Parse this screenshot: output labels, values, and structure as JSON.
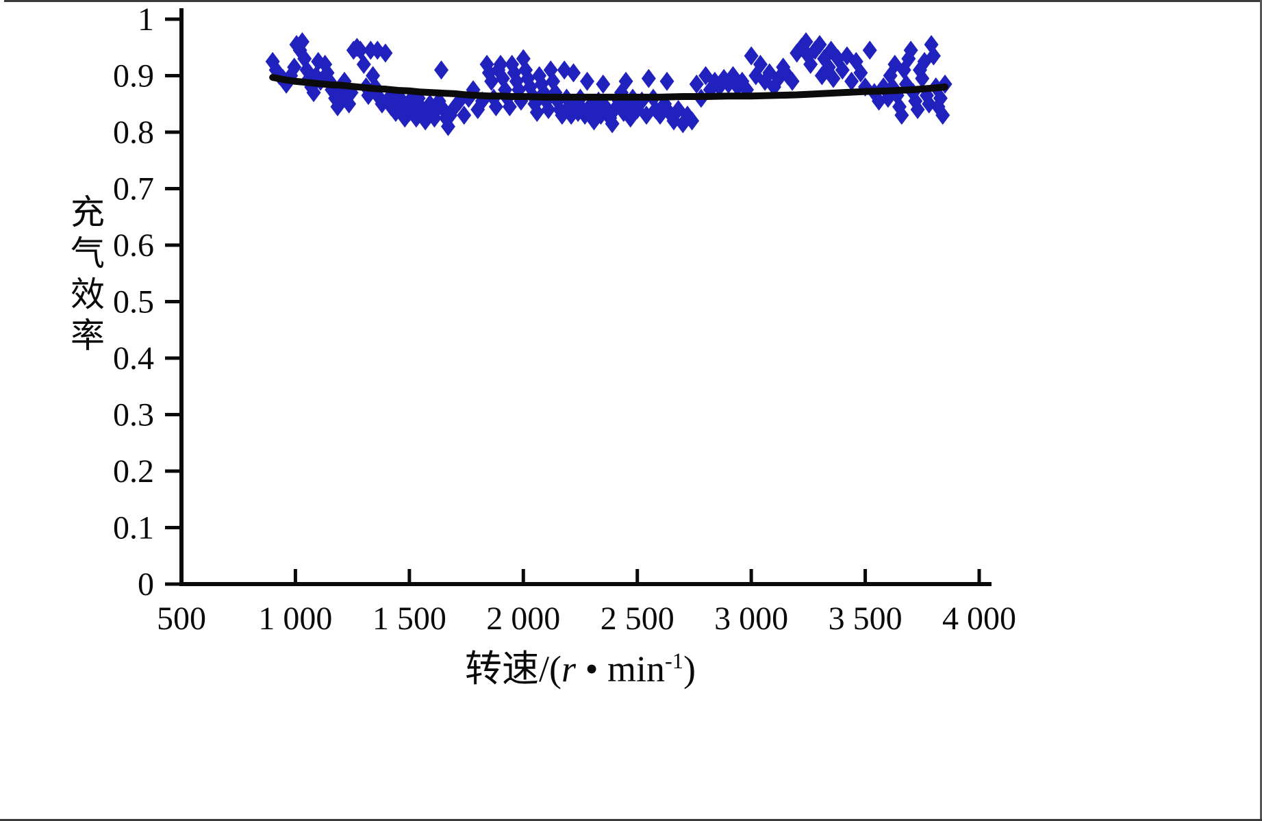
{
  "chart_data": {
    "type": "scatter",
    "title": "",
    "xlabel": "转速/(r·min⁻¹)",
    "ylabel": "充气效率",
    "xlabel_parts": {
      "pre": "转速/(",
      "var": "r",
      "dot": " • ",
      "unit": "min",
      "sup": "-1",
      "post": ")"
    },
    "xlim": [
      500,
      4000
    ],
    "ylim": [
      0,
      1
    ],
    "x_ticks": [
      500,
      1000,
      1500,
      2000,
      2500,
      3000,
      3500,
      4000
    ],
    "x_tick_labels": [
      "500",
      "1 000",
      "1 500",
      "2 000",
      "2 500",
      "3 000",
      "3 500",
      "4 000"
    ],
    "y_ticks": [
      0,
      0.1,
      0.2,
      0.3,
      0.4,
      0.5,
      0.6,
      0.7,
      0.8,
      0.9,
      1
    ],
    "y_tick_labels": [
      "0",
      "0.1",
      "0.2",
      "0.3",
      "0.4",
      "0.5",
      "0.6",
      "0.7",
      "0.8",
      "0.9",
      "1"
    ],
    "grid": false,
    "legend": "none",
    "colors": {
      "scatter": "#2121bd",
      "line": "#0b0b0b"
    },
    "series": [
      {
        "name": "measured-points",
        "type": "scatter",
        "marker": "diamond",
        "color": "#2121bd",
        "points": [
          [
            900,
            0.925
          ],
          [
            915,
            0.91
          ],
          [
            930,
            0.9
          ],
          [
            945,
            0.895
          ],
          [
            960,
            0.885
          ],
          [
            980,
            0.9
          ],
          [
            995,
            0.915
          ],
          [
            1005,
            0.955
          ],
          [
            1020,
            0.945
          ],
          [
            1030,
            0.96
          ],
          [
            1040,
            0.93
          ],
          [
            1050,
            0.91
          ],
          [
            1060,
            0.895
          ],
          [
            1070,
            0.88
          ],
          [
            1080,
            0.87
          ],
          [
            1090,
            0.9
          ],
          [
            1100,
            0.925
          ],
          [
            1110,
            0.89
          ],
          [
            1130,
            0.92
          ],
          [
            1140,
            0.905
          ],
          [
            1150,
            0.89
          ],
          [
            1160,
            0.875
          ],
          [
            1175,
            0.86
          ],
          [
            1185,
            0.845
          ],
          [
            1195,
            0.86
          ],
          [
            1205,
            0.875
          ],
          [
            1215,
            0.89
          ],
          [
            1225,
            0.86
          ],
          [
            1235,
            0.85
          ],
          [
            1245,
            0.87
          ],
          [
            1255,
            0.945
          ],
          [
            1270,
            0.95
          ],
          [
            1285,
            0.945
          ],
          [
            1300,
            0.92
          ],
          [
            1310,
            0.88
          ],
          [
            1320,
            0.865
          ],
          [
            1330,
            0.945
          ],
          [
            1340,
            0.9
          ],
          [
            1350,
            0.88
          ],
          [
            1360,
            0.945
          ],
          [
            1370,
            0.86
          ],
          [
            1380,
            0.85
          ],
          [
            1395,
            0.94
          ],
          [
            1410,
            0.86
          ],
          [
            1420,
            0.845
          ],
          [
            1430,
            0.86
          ],
          [
            1440,
            0.835
          ],
          [
            1450,
            0.85
          ],
          [
            1460,
            0.86
          ],
          [
            1470,
            0.84
          ],
          [
            1480,
            0.825
          ],
          [
            1490,
            0.845
          ],
          [
            1500,
            0.835
          ],
          [
            1510,
            0.86
          ],
          [
            1520,
            0.84
          ],
          [
            1530,
            0.825
          ],
          [
            1540,
            0.86
          ],
          [
            1550,
            0.845
          ],
          [
            1560,
            0.835
          ],
          [
            1570,
            0.82
          ],
          [
            1580,
            0.835
          ],
          [
            1590,
            0.85
          ],
          [
            1600,
            0.84
          ],
          [
            1610,
            0.825
          ],
          [
            1620,
            0.84
          ],
          [
            1630,
            0.855
          ],
          [
            1640,
            0.91
          ],
          [
            1650,
            0.84
          ],
          [
            1660,
            0.825
          ],
          [
            1670,
            0.81
          ],
          [
            1680,
            0.83
          ],
          [
            1700,
            0.845
          ],
          [
            1720,
            0.855
          ],
          [
            1740,
            0.83
          ],
          [
            1760,
            0.86
          ],
          [
            1780,
            0.875
          ],
          [
            1800,
            0.84
          ],
          [
            1820,
            0.855
          ],
          [
            1840,
            0.92
          ],
          [
            1850,
            0.905
          ],
          [
            1860,
            0.89
          ],
          [
            1870,
            0.86
          ],
          [
            1880,
            0.845
          ],
          [
            1890,
            0.91
          ],
          [
            1900,
            0.92
          ],
          [
            1910,
            0.895
          ],
          [
            1920,
            0.875
          ],
          [
            1930,
            0.86
          ],
          [
            1940,
            0.845
          ],
          [
            1950,
            0.92
          ],
          [
            1960,
            0.905
          ],
          [
            1970,
            0.89
          ],
          [
            1980,
            0.875
          ],
          [
            1990,
            0.855
          ],
          [
            2000,
            0.93
          ],
          [
            2010,
            0.91
          ],
          [
            2020,
            0.895
          ],
          [
            2030,
            0.88
          ],
          [
            2040,
            0.865
          ],
          [
            2050,
            0.85
          ],
          [
            2060,
            0.835
          ],
          [
            2070,
            0.9
          ],
          [
            2080,
            0.885
          ],
          [
            2090,
            0.87
          ],
          [
            2100,
            0.855
          ],
          [
            2110,
            0.84
          ],
          [
            2120,
            0.91
          ],
          [
            2130,
            0.89
          ],
          [
            2140,
            0.87
          ],
          [
            2150,
            0.855
          ],
          [
            2160,
            0.84
          ],
          [
            2170,
            0.83
          ],
          [
            2180,
            0.91
          ],
          [
            2190,
            0.86
          ],
          [
            2200,
            0.845
          ],
          [
            2210,
            0.83
          ],
          [
            2220,
            0.905
          ],
          [
            2230,
            0.85
          ],
          [
            2240,
            0.835
          ],
          [
            2250,
            0.86
          ],
          [
            2260,
            0.84
          ],
          [
            2270,
            0.83
          ],
          [
            2280,
            0.89
          ],
          [
            2290,
            0.845
          ],
          [
            2300,
            0.835
          ],
          [
            2310,
            0.82
          ],
          [
            2320,
            0.84
          ],
          [
            2330,
            0.855
          ],
          [
            2340,
            0.83
          ],
          [
            2350,
            0.885
          ],
          [
            2360,
            0.845
          ],
          [
            2380,
            0.825
          ],
          [
            2390,
            0.815
          ],
          [
            2400,
            0.84
          ],
          [
            2420,
            0.855
          ],
          [
            2430,
            0.87
          ],
          [
            2440,
            0.835
          ],
          [
            2450,
            0.89
          ],
          [
            2460,
            0.845
          ],
          [
            2470,
            0.825
          ],
          [
            2480,
            0.86
          ],
          [
            2500,
            0.84
          ],
          [
            2520,
            0.855
          ],
          [
            2540,
            0.83
          ],
          [
            2550,
            0.895
          ],
          [
            2570,
            0.86
          ],
          [
            2580,
            0.84
          ],
          [
            2600,
            0.83
          ],
          [
            2620,
            0.85
          ],
          [
            2630,
            0.89
          ],
          [
            2640,
            0.835
          ],
          [
            2660,
            0.82
          ],
          [
            2680,
            0.84
          ],
          [
            2700,
            0.815
          ],
          [
            2720,
            0.83
          ],
          [
            2740,
            0.82
          ],
          [
            2760,
            0.885
          ],
          [
            2780,
            0.86
          ],
          [
            2800,
            0.9
          ],
          [
            2820,
            0.875
          ],
          [
            2840,
            0.89
          ],
          [
            2860,
            0.88
          ],
          [
            2880,
            0.895
          ],
          [
            2900,
            0.885
          ],
          [
            2920,
            0.9
          ],
          [
            2940,
            0.88
          ],
          [
            2960,
            0.89
          ],
          [
            2980,
            0.875
          ],
          [
            3000,
            0.935
          ],
          [
            3020,
            0.9
          ],
          [
            3040,
            0.92
          ],
          [
            3060,
            0.89
          ],
          [
            3080,
            0.905
          ],
          [
            3100,
            0.88
          ],
          [
            3120,
            0.895
          ],
          [
            3140,
            0.915
          ],
          [
            3160,
            0.9
          ],
          [
            3180,
            0.89
          ],
          [
            3200,
            0.94
          ],
          [
            3220,
            0.95
          ],
          [
            3240,
            0.96
          ],
          [
            3250,
            0.935
          ],
          [
            3260,
            0.92
          ],
          [
            3280,
            0.945
          ],
          [
            3300,
            0.955
          ],
          [
            3310,
            0.9
          ],
          [
            3320,
            0.93
          ],
          [
            3340,
            0.915
          ],
          [
            3350,
            0.945
          ],
          [
            3360,
            0.895
          ],
          [
            3380,
            0.93
          ],
          [
            3400,
            0.91
          ],
          [
            3420,
            0.935
          ],
          [
            3440,
            0.89
          ],
          [
            3460,
            0.925
          ],
          [
            3480,
            0.905
          ],
          [
            3500,
            0.88
          ],
          [
            3520,
            0.945
          ],
          [
            3540,
            0.87
          ],
          [
            3560,
            0.855
          ],
          [
            3580,
            0.88
          ],
          [
            3600,
            0.86
          ],
          [
            3610,
            0.9
          ],
          [
            3620,
            0.88
          ],
          [
            3630,
            0.92
          ],
          [
            3640,
            0.865
          ],
          [
            3650,
            0.845
          ],
          [
            3660,
            0.83
          ],
          [
            3670,
            0.91
          ],
          [
            3680,
            0.885
          ],
          [
            3690,
            0.93
          ],
          [
            3700,
            0.945
          ],
          [
            3710,
            0.87
          ],
          [
            3720,
            0.855
          ],
          [
            3730,
            0.84
          ],
          [
            3740,
            0.91
          ],
          [
            3750,
            0.895
          ],
          [
            3760,
            0.925
          ],
          [
            3770,
            0.865
          ],
          [
            3780,
            0.85
          ],
          [
            3790,
            0.955
          ],
          [
            3800,
            0.935
          ],
          [
            3810,
            0.88
          ],
          [
            3820,
            0.845
          ],
          [
            3830,
            0.86
          ],
          [
            3840,
            0.83
          ],
          [
            3850,
            0.885
          ]
        ]
      },
      {
        "name": "fit-line",
        "type": "line",
        "color": "#0b0b0b",
        "width": 10,
        "points": [
          [
            900,
            0.897
          ],
          [
            950,
            0.893
          ],
          [
            1000,
            0.89
          ],
          [
            1050,
            0.888
          ],
          [
            1100,
            0.886
          ],
          [
            1150,
            0.884
          ],
          [
            1200,
            0.883
          ],
          [
            1250,
            0.881
          ],
          [
            1300,
            0.879
          ],
          [
            1350,
            0.877
          ],
          [
            1400,
            0.876
          ],
          [
            1450,
            0.874
          ],
          [
            1500,
            0.873
          ],
          [
            1550,
            0.871
          ],
          [
            1600,
            0.87
          ],
          [
            1650,
            0.869
          ],
          [
            1700,
            0.868
          ],
          [
            1750,
            0.866
          ],
          [
            1800,
            0.865
          ],
          [
            1850,
            0.864
          ],
          [
            1900,
            0.864
          ],
          [
            1950,
            0.863
          ],
          [
            2000,
            0.863
          ],
          [
            2100,
            0.862
          ],
          [
            2200,
            0.862
          ],
          [
            2300,
            0.862
          ],
          [
            2400,
            0.862
          ],
          [
            2500,
            0.862
          ],
          [
            2600,
            0.862
          ],
          [
            2700,
            0.863
          ],
          [
            2800,
            0.863
          ],
          [
            2900,
            0.864
          ],
          [
            3000,
            0.864
          ],
          [
            3100,
            0.865
          ],
          [
            3200,
            0.866
          ],
          [
            3300,
            0.868
          ],
          [
            3400,
            0.87
          ],
          [
            3500,
            0.872
          ],
          [
            3600,
            0.873
          ],
          [
            3700,
            0.875
          ],
          [
            3800,
            0.878
          ],
          [
            3850,
            0.88
          ]
        ]
      }
    ]
  }
}
